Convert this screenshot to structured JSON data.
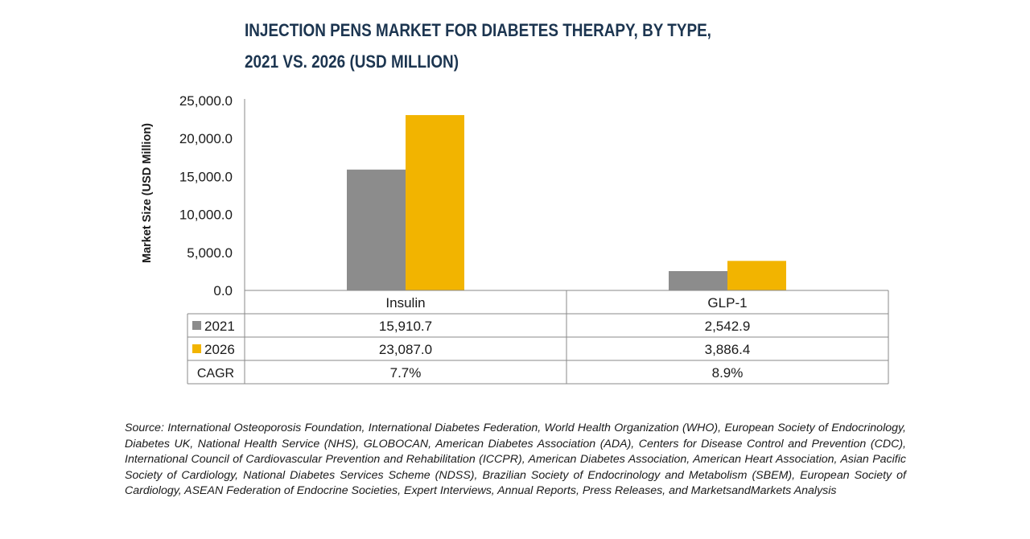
{
  "title": {
    "line1": "INJECTION PENS MARKET FOR DIABETES THERAPY, BY TYPE,",
    "line2": "2021 VS. 2026 (USD MILLION)"
  },
  "colors": {
    "series_2021": "#8c8c8c",
    "series_2026": "#f2b400",
    "title": "#1c3550",
    "divider": "#c9a233",
    "grid": "#8a8a8a"
  },
  "chart_data": {
    "type": "bar",
    "title": "INJECTION PENS MARKET FOR DIABETES THERAPY, BY TYPE, 2021 VS. 2026 (USD MILLION)",
    "xlabel": "",
    "ylabel": "Market Size (USD Million)",
    "categories": [
      "Insulin",
      "GLP-1"
    ],
    "series": [
      {
        "name": "2021",
        "values": [
          15910.7,
          2542.9
        ],
        "labels": [
          "15,910.7",
          "2,542.9"
        ]
      },
      {
        "name": "2026",
        "values": [
          23087.0,
          3886.4
        ],
        "labels": [
          "23,087.0",
          "3,886.4"
        ]
      }
    ],
    "ylim": [
      0,
      25000
    ],
    "yticks": [
      0,
      5000,
      10000,
      15000,
      20000,
      25000
    ],
    "ytick_labels": [
      "0.0",
      "5,000.0",
      "10,000.0",
      "15,000.0",
      "20,000.0",
      "25,000.0"
    ],
    "grid": false,
    "legend": "data-table",
    "data_table": {
      "rows": [
        {
          "label": "2021",
          "series": 0
        },
        {
          "label": "2026",
          "series": 1
        },
        {
          "label": "CAGR",
          "values": [
            "7.7%",
            "8.9%"
          ]
        }
      ]
    }
  },
  "source": "Source: International Osteoporosis Foundation, International Diabetes Federation, World Health Organization (WHO), European Society of Endocrinology, Diabetes UK, National Health Service (NHS), GLOBOCAN, American Diabetes Association (ADA), Centers for Disease Control and Prevention (CDC), International Council of Cardiovascular Prevention and Rehabilitation (ICCPR), American Diabetes Association, American Heart Association, Asian Pacific Society of Cardiology, National Diabetes Services Scheme (NDSS), Brazilian Society of Endocrinology and Metabolism (SBEM), European Society of Cardiology, ASEAN Federation of Endocrine Societies, Expert Interviews, Annual Reports, Press Releases, and MarketsandMarkets Analysis"
}
